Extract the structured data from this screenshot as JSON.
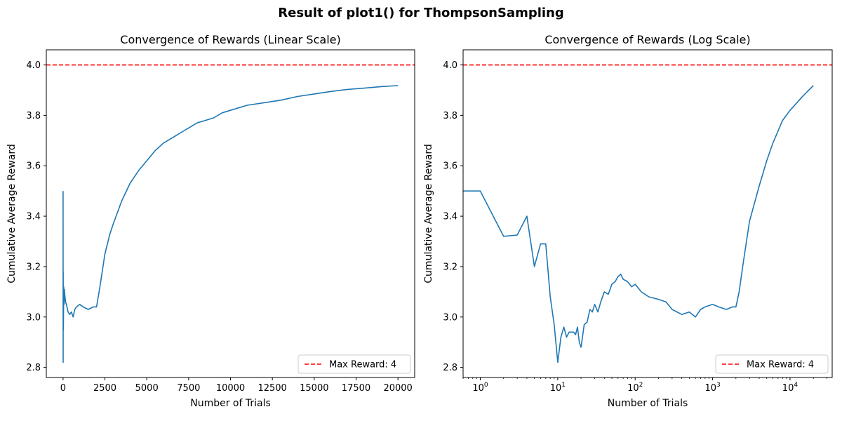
{
  "figure": {
    "suptitle": "Result of plot1() for ThompsonSampling"
  },
  "colors": {
    "series": "#1f77b4",
    "max_line": "#ff0000",
    "axes": "#000000"
  },
  "chart_data": [
    {
      "type": "line",
      "title": "Convergence of Rewards (Linear Scale)",
      "xlabel": "Number of Trials",
      "ylabel": "Cumulative Average Reward",
      "xscale": "linear",
      "xlim": [
        -1000,
        21000
      ],
      "ylim": [
        2.76,
        4.06
      ],
      "xticks": [
        0,
        2500,
        5000,
        7500,
        10000,
        12500,
        15000,
        17500,
        20000
      ],
      "xtick_labels": [
        "0",
        "2500",
        "5000",
        "7500",
        "10000",
        "12500",
        "15000",
        "17500",
        "20000"
      ],
      "yticks": [
        2.8,
        3.0,
        3.2,
        3.4,
        3.6,
        3.8,
        4.0
      ],
      "ytick_labels": [
        "2.8",
        "3.0",
        "3.2",
        "3.4",
        "3.6",
        "3.8",
        "4.0"
      ],
      "grid": false,
      "legend_position": "lower-right",
      "hline": {
        "value": 4.0,
        "label": "Max Reward: 4",
        "style": "dashed"
      },
      "series": [
        {
          "x": [
            0,
            5,
            10,
            20,
            40,
            60,
            80,
            100,
            150,
            200,
            300,
            400,
            500,
            600,
            700,
            800,
            1000,
            1200,
            1500,
            1800,
            2000,
            2200,
            2500,
            2800,
            3000,
            3500,
            4000,
            4500,
            5000,
            5500,
            6000,
            6500,
            7000,
            7500,
            8000,
            8500,
            9000,
            9500,
            10000,
            11000,
            12000,
            13000,
            14000,
            15000,
            16000,
            17000,
            18000,
            19000,
            20000
          ],
          "y": [
            3.5,
            2.82,
            3.18,
            2.95,
            3.12,
            3.05,
            3.11,
            3.09,
            3.06,
            3.05,
            3.02,
            3.01,
            3.02,
            3.0,
            3.03,
            3.04,
            3.05,
            3.04,
            3.03,
            3.04,
            3.04,
            3.12,
            3.25,
            3.33,
            3.37,
            3.46,
            3.53,
            3.58,
            3.62,
            3.66,
            3.69,
            3.71,
            3.73,
            3.75,
            3.77,
            3.78,
            3.79,
            3.81,
            3.82,
            3.84,
            3.85,
            3.86,
            3.875,
            3.885,
            3.895,
            3.903,
            3.908,
            3.914,
            3.918
          ]
        }
      ]
    },
    {
      "type": "line",
      "title": "Convergence of Rewards (Log Scale)",
      "xlabel": "Number of Trials",
      "ylabel": "Cumulative Average Reward",
      "xscale": "log",
      "xlim": [
        0.6,
        35000
      ],
      "ylim": [
        2.76,
        4.06
      ],
      "xticks": [
        1,
        10,
        100,
        1000,
        10000
      ],
      "xtick_labels": [
        {
          "base": "10",
          "exp": "0"
        },
        {
          "base": "10",
          "exp": "1"
        },
        {
          "base": "10",
          "exp": "2"
        },
        {
          "base": "10",
          "exp": "3"
        },
        {
          "base": "10",
          "exp": "4"
        }
      ],
      "yticks": [
        2.8,
        3.0,
        3.2,
        3.4,
        3.6,
        3.8,
        4.0
      ],
      "ytick_labels": [
        "2.8",
        "3.0",
        "3.2",
        "3.4",
        "3.6",
        "3.8",
        "4.0"
      ],
      "grid": false,
      "legend_position": "lower-right",
      "hline": {
        "value": 4.0,
        "label": "Max Reward: 4",
        "style": "dashed"
      },
      "series": [
        {
          "x": [
            0.6,
            1,
            2,
            3,
            4,
            5,
            6,
            7,
            8,
            9,
            10,
            11,
            12,
            13,
            14,
            15,
            16,
            17,
            18,
            19,
            20,
            22,
            24,
            26,
            28,
            30,
            33,
            36,
            40,
            45,
            50,
            55,
            60,
            65,
            70,
            80,
            90,
            100,
            120,
            150,
            200,
            250,
            300,
            400,
            500,
            600,
            700,
            800,
            1000,
            1200,
            1500,
            1800,
            2000,
            2200,
            2500,
            3000,
            4000,
            5000,
            6000,
            8000,
            10000,
            15000,
            20000
          ],
          "y": [
            3.5,
            3.5,
            3.32,
            3.325,
            3.4,
            3.2,
            3.29,
            3.29,
            3.08,
            2.97,
            2.82,
            2.92,
            2.96,
            2.92,
            2.94,
            2.94,
            2.94,
            2.93,
            2.96,
            2.9,
            2.88,
            2.97,
            2.98,
            3.03,
            3.02,
            3.05,
            3.02,
            3.06,
            3.1,
            3.09,
            3.13,
            3.14,
            3.16,
            3.17,
            3.15,
            3.14,
            3.12,
            3.13,
            3.1,
            3.08,
            3.07,
            3.06,
            3.03,
            3.01,
            3.02,
            3.0,
            3.03,
            3.04,
            3.05,
            3.04,
            3.03,
            3.04,
            3.04,
            3.1,
            3.22,
            3.38,
            3.52,
            3.62,
            3.69,
            3.78,
            3.82,
            3.88,
            3.918
          ]
        }
      ]
    }
  ]
}
